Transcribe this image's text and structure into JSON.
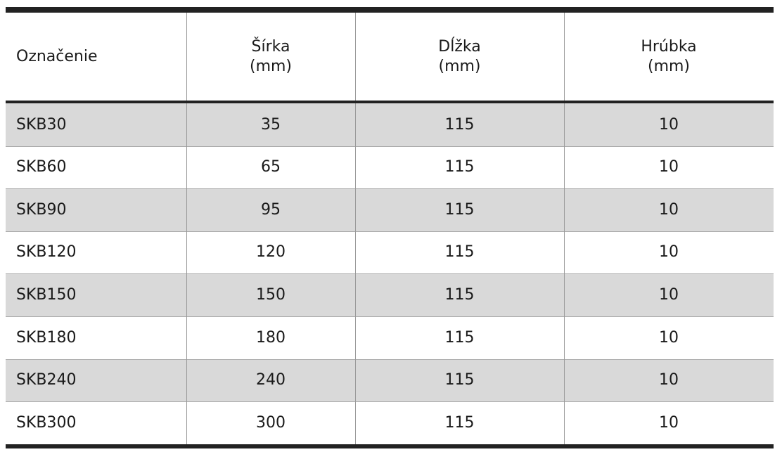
{
  "table": {
    "header": [
      [
        "Označenie"
      ],
      [
        "Šírka",
        "(mm)"
      ],
      [
        "Dĺžka",
        "(mm)"
      ],
      [
        "Hrúbka",
        "(mm)"
      ]
    ],
    "rows": [
      [
        "SKB30",
        35,
        115,
        10
      ],
      [
        "SKB60",
        65,
        115,
        10
      ],
      [
        "SKB90",
        95,
        115,
        10
      ],
      [
        "SKB120",
        120,
        115,
        10
      ],
      [
        "SKB150",
        150,
        115,
        10
      ],
      [
        "SKB180",
        180,
        115,
        10
      ],
      [
        "SKB240",
        240,
        115,
        10
      ],
      [
        "SKB300",
        300,
        115,
        10
      ]
    ]
  }
}
